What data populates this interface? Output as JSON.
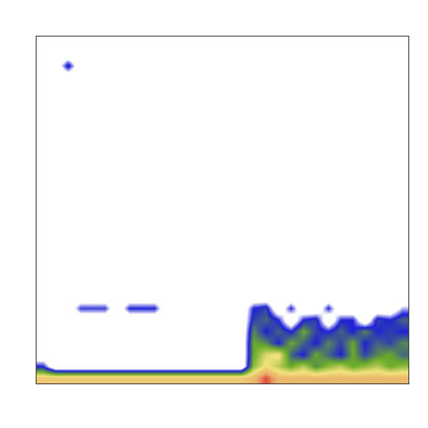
{
  "chart_data": {
    "type": "heatmap",
    "tick_labels": false,
    "grid": false,
    "xlim": [
      -0.5,
      29.5
    ],
    "ylim": [
      -0.5,
      29.5
    ],
    "zlim": [
      0,
      1
    ],
    "cells": [
      [
        0.75,
        0.75,
        0.75,
        0.75,
        0.75,
        0.75,
        0.75,
        0.75,
        0.75,
        0.75,
        0.75,
        0.75,
        0.75,
        0.75,
        0.75,
        0.75,
        0.75,
        0.8,
        0.95,
        0.8,
        0.8,
        0.8,
        0.8,
        0.8,
        0.8,
        0.8,
        0.8,
        0.8,
        0.8,
        0.8
      ],
      [
        0.3,
        0,
        0,
        0,
        0,
        0,
        0,
        0,
        0,
        0,
        0,
        0,
        0,
        0,
        0,
        0,
        0,
        0.55,
        0.7,
        0.6,
        0.5,
        0.6,
        0.45,
        0.55,
        0.6,
        0.5,
        0.55,
        0.6,
        0.5,
        0.55
      ],
      [
        0,
        0,
        0,
        0,
        0,
        0,
        0,
        0,
        0,
        0,
        0,
        0,
        0,
        0,
        0,
        0,
        0,
        0.5,
        0.65,
        0.7,
        0.4,
        0.3,
        0.5,
        0.4,
        0.3,
        0.5,
        0.35,
        0.45,
        0.5,
        0.4
      ],
      [
        0,
        0,
        0,
        0,
        0,
        0,
        0,
        0,
        0,
        0,
        0,
        0,
        0,
        0,
        0,
        0,
        0,
        0.5,
        0.45,
        0.3,
        0.5,
        0.4,
        0.3,
        0.45,
        0.35,
        0.5,
        0.3,
        0.4,
        0.35,
        0.45
      ],
      [
        0,
        0,
        0,
        0,
        0,
        0,
        0,
        0,
        0,
        0,
        0,
        0,
        0,
        0,
        0,
        0,
        0,
        0.45,
        0.3,
        0.4,
        0.3,
        0.5,
        0.35,
        0.3,
        0.4,
        0.3,
        0.45,
        0.3,
        0.35,
        0.3
      ],
      [
        0,
        0,
        0,
        0,
        0,
        0,
        0,
        0,
        0,
        0,
        0,
        0,
        0,
        0,
        0,
        0,
        0,
        0.35,
        0.4,
        0.3,
        0,
        0.3,
        0.35,
        0,
        0.3,
        0.3,
        0,
        0.35,
        0.3,
        0.4
      ],
      [
        0,
        0,
        0,
        0.28,
        0.28,
        0.28,
        0,
        0.3,
        0.3,
        0.3,
        0,
        0,
        0,
        0,
        0,
        0,
        0,
        0.3,
        0.35,
        0,
        0.3,
        0,
        0,
        0.3,
        0,
        0,
        0,
        0,
        0,
        0.2
      ],
      [
        0,
        0,
        0,
        0,
        0,
        0,
        0,
        0,
        0,
        0,
        0,
        0,
        0,
        0,
        0,
        0,
        0,
        0,
        0,
        0,
        0,
        0,
        0,
        0,
        0,
        0,
        0,
        0,
        0,
        0
      ],
      [
        0,
        0,
        0,
        0,
        0,
        0,
        0,
        0,
        0,
        0,
        0,
        0,
        0,
        0,
        0,
        0,
        0,
        0,
        0,
        0,
        0,
        0,
        0,
        0,
        0,
        0,
        0,
        0,
        0,
        0
      ],
      [
        0,
        0,
        0,
        0,
        0,
        0,
        0,
        0,
        0,
        0,
        0,
        0,
        0,
        0,
        0,
        0,
        0,
        0,
        0,
        0,
        0,
        0,
        0,
        0,
        0,
        0,
        0,
        0,
        0,
        0
      ],
      [
        0,
        0,
        0,
        0,
        0,
        0,
        0,
        0,
        0,
        0,
        0,
        0,
        0,
        0,
        0,
        0,
        0,
        0,
        0,
        0,
        0,
        0,
        0,
        0,
        0,
        0,
        0,
        0,
        0,
        0
      ],
      [
        0,
        0,
        0,
        0,
        0,
        0,
        0,
        0,
        0,
        0,
        0,
        0,
        0,
        0,
        0,
        0,
        0,
        0,
        0,
        0,
        0,
        0,
        0,
        0,
        0,
        0,
        0,
        0,
        0,
        0
      ],
      [
        0,
        0,
        0,
        0,
        0,
        0,
        0,
        0,
        0,
        0,
        0,
        0,
        0,
        0,
        0,
        0,
        0,
        0,
        0,
        0,
        0,
        0,
        0,
        0,
        0,
        0,
        0,
        0,
        0,
        0
      ],
      [
        0,
        0,
        0,
        0,
        0,
        0,
        0,
        0,
        0,
        0,
        0,
        0,
        0,
        0,
        0,
        0,
        0,
        0,
        0,
        0,
        0,
        0,
        0,
        0,
        0,
        0,
        0,
        0,
        0,
        0
      ],
      [
        0,
        0,
        0,
        0,
        0,
        0,
        0,
        0,
        0,
        0,
        0,
        0,
        0,
        0,
        0,
        0,
        0,
        0,
        0,
        0,
        0,
        0,
        0,
        0,
        0,
        0,
        0,
        0,
        0,
        0
      ],
      [
        0,
        0,
        0,
        0,
        0,
        0,
        0,
        0,
        0,
        0,
        0,
        0,
        0,
        0,
        0,
        0,
        0,
        0,
        0,
        0,
        0,
        0,
        0,
        0,
        0,
        0,
        0,
        0,
        0,
        0
      ],
      [
        0,
        0,
        0,
        0,
        0,
        0,
        0,
        0,
        0,
        0,
        0,
        0,
        0,
        0,
        0,
        0,
        0,
        0,
        0,
        0,
        0,
        0,
        0,
        0,
        0,
        0,
        0,
        0,
        0,
        0
      ],
      [
        0,
        0,
        0,
        0,
        0,
        0,
        0,
        0,
        0,
        0,
        0,
        0,
        0,
        0,
        0,
        0,
        0,
        0,
        0,
        0,
        0,
        0,
        0,
        0,
        0,
        0,
        0,
        0,
        0,
        0
      ],
      [
        0,
        0,
        0,
        0,
        0,
        0,
        0,
        0,
        0,
        0,
        0,
        0,
        0,
        0,
        0,
        0,
        0,
        0,
        0,
        0,
        0,
        0,
        0,
        0,
        0,
        0,
        0,
        0,
        0,
        0
      ],
      [
        0,
        0,
        0,
        0,
        0,
        0,
        0,
        0,
        0,
        0,
        0,
        0,
        0,
        0,
        0,
        0,
        0,
        0,
        0,
        0,
        0,
        0,
        0,
        0,
        0,
        0,
        0,
        0,
        0,
        0
      ],
      [
        0,
        0,
        0,
        0,
        0,
        0,
        0,
        0,
        0,
        0,
        0,
        0,
        0,
        0,
        0,
        0,
        0,
        0,
        0,
        0,
        0,
        0,
        0,
        0,
        0,
        0,
        0,
        0,
        0,
        0
      ],
      [
        0,
        0,
        0,
        0,
        0,
        0,
        0,
        0,
        0,
        0,
        0,
        0,
        0,
        0,
        0,
        0,
        0,
        0,
        0,
        0,
        0,
        0,
        0,
        0,
        0,
        0,
        0,
        0,
        0,
        0
      ],
      [
        0,
        0,
        0,
        0,
        0,
        0,
        0,
        0,
        0,
        0,
        0,
        0,
        0,
        0,
        0,
        0,
        0,
        0,
        0,
        0,
        0,
        0,
        0,
        0,
        0,
        0,
        0,
        0,
        0,
        0
      ],
      [
        0,
        0,
        0,
        0,
        0,
        0,
        0,
        0,
        0,
        0,
        0,
        0,
        0,
        0,
        0,
        0,
        0,
        0,
        0,
        0,
        0,
        0,
        0,
        0,
        0,
        0,
        0,
        0,
        0,
        0
      ],
      [
        0,
        0,
        0,
        0,
        0,
        0,
        0,
        0,
        0,
        0,
        0,
        0,
        0,
        0,
        0,
        0,
        0,
        0,
        0,
        0,
        0,
        0,
        0,
        0,
        0,
        0,
        0,
        0,
        0,
        0
      ],
      [
        0,
        0,
        0,
        0,
        0,
        0,
        0,
        0,
        0,
        0,
        0,
        0,
        0,
        0,
        0,
        0,
        0,
        0,
        0,
        0,
        0,
        0,
        0,
        0,
        0,
        0,
        0,
        0,
        0,
        0
      ],
      [
        0,
        0,
        0,
        0,
        0,
        0,
        0,
        0,
        0,
        0,
        0,
        0,
        0,
        0,
        0,
        0,
        0,
        0,
        0,
        0,
        0,
        0,
        0,
        0,
        0,
        0,
        0,
        0,
        0,
        0
      ],
      [
        0,
        0,
        0.35,
        0,
        0,
        0,
        0,
        0,
        0,
        0,
        0,
        0,
        0,
        0,
        0,
        0,
        0,
        0,
        0,
        0,
        0,
        0,
        0,
        0,
        0,
        0,
        0,
        0,
        0,
        0
      ],
      [
        0,
        0,
        0,
        0,
        0,
        0,
        0,
        0,
        0,
        0,
        0,
        0,
        0,
        0,
        0,
        0,
        0,
        0,
        0,
        0,
        0,
        0,
        0,
        0,
        0,
        0,
        0,
        0,
        0,
        0
      ],
      [
        0,
        0,
        0,
        0,
        0,
        0,
        0,
        0,
        0,
        0,
        0,
        0,
        0,
        0,
        0,
        0,
        0,
        0,
        0,
        0,
        0,
        0,
        0,
        0,
        0,
        0,
        0,
        0,
        0,
        0
      ]
    ]
  }
}
